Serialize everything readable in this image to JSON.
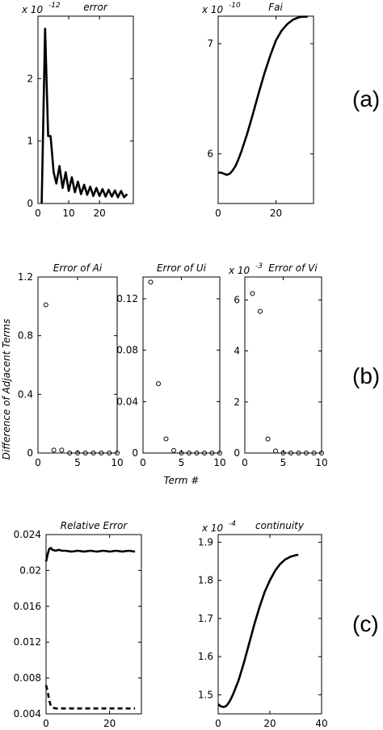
{
  "panel_tags": [
    "(a)",
    "(b)",
    "(c)"
  ],
  "chart_data": [
    {
      "id": "a1",
      "type": "line",
      "title": "error",
      "multiplier": {
        "base": "x 10",
        "exp": "-12"
      },
      "xlim": [
        0,
        31
      ],
      "ylim": [
        0,
        3.0
      ],
      "xticks": [
        0,
        10,
        20
      ],
      "yticks": [
        0,
        1,
        2
      ],
      "xtick_labels": [
        "0",
        "10",
        "20"
      ],
      "ytick_labels": [
        "0",
        "1",
        "2"
      ],
      "series": [
        {
          "style": "solid",
          "x": [
            1.2,
            2.3,
            3.3,
            4.1,
            5.1,
            6.0,
            7.0,
            8.0,
            9.0,
            10.0,
            11.0,
            12.0,
            13.0,
            14.0,
            15.0,
            16.0,
            17.0,
            18.0,
            19.0,
            20.0,
            21.0,
            22.0,
            23.0,
            24.0,
            25.0,
            26.0,
            27.0,
            28.0,
            29.0
          ],
          "y": [
            0.0,
            2.8,
            1.08,
            1.08,
            0.5,
            0.32,
            0.6,
            0.25,
            0.5,
            0.2,
            0.42,
            0.18,
            0.35,
            0.15,
            0.3,
            0.14,
            0.27,
            0.12,
            0.25,
            0.12,
            0.23,
            0.11,
            0.22,
            0.11,
            0.21,
            0.1,
            0.2,
            0.1,
            0.15
          ]
        }
      ]
    },
    {
      "id": "a2",
      "type": "line",
      "title": "Fai",
      "multiplier": {
        "base": "x 10",
        "exp": "-10"
      },
      "xlim": [
        0,
        33
      ],
      "ylim": [
        5.55,
        7.25
      ],
      "xticks": [
        0,
        20
      ],
      "yticks": [
        6,
        7
      ],
      "xtick_labels": [
        "0",
        "20"
      ],
      "ytick_labels": [
        "6",
        "7"
      ],
      "series": [
        {
          "style": "solid",
          "x": [
            0,
            1,
            2,
            3,
            4,
            5,
            6,
            7,
            8,
            10,
            12,
            14,
            16,
            18,
            20,
            22,
            24,
            26,
            28,
            29,
            30,
            31
          ],
          "y": [
            5.83,
            5.83,
            5.82,
            5.81,
            5.82,
            5.85,
            5.89,
            5.95,
            6.02,
            6.18,
            6.36,
            6.55,
            6.73,
            6.89,
            7.03,
            7.12,
            7.18,
            7.22,
            7.24,
            7.245,
            7.245,
            7.245
          ]
        }
      ]
    },
    {
      "id": "b1",
      "type": "scatter",
      "title": "Error of Ai",
      "xlim": [
        0,
        10
      ],
      "ylim": [
        0,
        1.2
      ],
      "xticks": [
        0,
        5,
        10
      ],
      "yticks": [
        0,
        0.4,
        0.8,
        1.2
      ],
      "xtick_labels": [
        "0",
        "5",
        "10"
      ],
      "ytick_labels": [
        "0",
        "0.4",
        "0.8",
        "1.2"
      ],
      "ylabel": "Difference of Adjacent Terms",
      "series": [
        {
          "marker": "circle",
          "x": [
            1,
            2,
            3,
            4,
            5,
            6,
            7,
            8,
            9,
            10
          ],
          "y": [
            1.01,
            0.02,
            0.02,
            0.0,
            0.0,
            0.0,
            0.0,
            0.0,
            0.0,
            0.0
          ]
        }
      ]
    },
    {
      "id": "b2",
      "type": "scatter",
      "title": "Error of Ui",
      "xlim": [
        0,
        10
      ],
      "ylim": [
        0,
        0.137
      ],
      "xticks": [
        0,
        5,
        10
      ],
      "yticks": [
        0,
        0.04,
        0.08,
        0.12
      ],
      "xtick_labels": [
        "0",
        "5",
        "10"
      ],
      "ytick_labels": [
        "0",
        "0.04",
        "0.08",
        "0.12"
      ],
      "xlabel": "Term #",
      "series": [
        {
          "marker": "circle",
          "x": [
            1,
            2,
            3,
            4,
            5,
            6,
            7,
            8,
            9,
            10
          ],
          "y": [
            0.133,
            0.054,
            0.011,
            0.002,
            0.0,
            0.0,
            0.0,
            0.0,
            0.0,
            0.0
          ]
        }
      ]
    },
    {
      "id": "b3",
      "type": "scatter",
      "title": "Error of Vi",
      "multiplier": {
        "base": "x 10",
        "exp": "-3"
      },
      "xlim": [
        0,
        10
      ],
      "ylim": [
        0,
        6.9
      ],
      "xticks": [
        0,
        5,
        10
      ],
      "yticks": [
        0,
        2,
        4,
        6
      ],
      "xtick_labels": [
        "0",
        "5",
        "10"
      ],
      "ytick_labels": [
        "0",
        "2",
        "4",
        "6"
      ],
      "series": [
        {
          "marker": "circle",
          "x": [
            1,
            2,
            3,
            4,
            5,
            6,
            7,
            8,
            9,
            10
          ],
          "y": [
            6.25,
            5.55,
            0.55,
            0.08,
            0.0,
            0.0,
            0.0,
            0.0,
            0.0,
            0.0
          ]
        }
      ]
    },
    {
      "id": "c1",
      "type": "line",
      "title": "Relative Error",
      "xlim": [
        0,
        30
      ],
      "ylim": [
        0.004,
        0.024
      ],
      "xticks": [
        0,
        20
      ],
      "yticks": [
        0.004,
        0.008,
        0.012,
        0.016,
        0.02,
        0.024
      ],
      "xtick_labels": [
        "0",
        "20"
      ],
      "ytick_labels": [
        "0.004",
        "0.008",
        "0.012",
        "0.016",
        "0.02",
        "0.024"
      ],
      "series": [
        {
          "style": "solid",
          "x": [
            0,
            0.5,
            1,
            1.5,
            2,
            3,
            4,
            5,
            6,
            8,
            10,
            12,
            14,
            16,
            18,
            20,
            22,
            24,
            26,
            28
          ],
          "y": [
            0.021,
            0.0218,
            0.0224,
            0.0225,
            0.0223,
            0.0222,
            0.0223,
            0.0222,
            0.0222,
            0.0221,
            0.0222,
            0.0221,
            0.0222,
            0.0221,
            0.0222,
            0.0221,
            0.0222,
            0.0221,
            0.0222,
            0.0221
          ]
        },
        {
          "style": "dashed",
          "x": [
            0,
            0.5,
            1,
            1.5,
            2,
            3,
            4,
            6,
            10,
            15,
            20,
            25,
            28
          ],
          "y": [
            0.0072,
            0.0065,
            0.0055,
            0.0049,
            0.0047,
            0.0046,
            0.0046,
            0.0046,
            0.0046,
            0.0046,
            0.0046,
            0.0046,
            0.0046
          ]
        }
      ]
    },
    {
      "id": "c2",
      "type": "line",
      "title": "continuity",
      "multiplier": {
        "base": "x 10",
        "exp": "-4"
      },
      "xlim": [
        0,
        40
      ],
      "ylim": [
        1.45,
        1.92
      ],
      "xticks": [
        0,
        20,
        40
      ],
      "yticks": [
        1.5,
        1.6,
        1.7,
        1.8,
        1.9
      ],
      "xtick_labels": [
        "0",
        "20",
        "40"
      ],
      "ytick_labels": [
        "1.5",
        "1.6",
        "1.7",
        "1.8",
        "1.9"
      ],
      "series": [
        {
          "style": "solid",
          "x": [
            0,
            1,
            2,
            3,
            4,
            5,
            6,
            8,
            10,
            12,
            14,
            16,
            18,
            20,
            22,
            24,
            26,
            28,
            30,
            31
          ],
          "y": [
            1.475,
            1.47,
            1.468,
            1.47,
            1.478,
            1.49,
            1.505,
            1.54,
            1.585,
            1.635,
            1.685,
            1.73,
            1.77,
            1.8,
            1.825,
            1.843,
            1.855,
            1.862,
            1.866,
            1.867
          ]
        }
      ]
    }
  ]
}
